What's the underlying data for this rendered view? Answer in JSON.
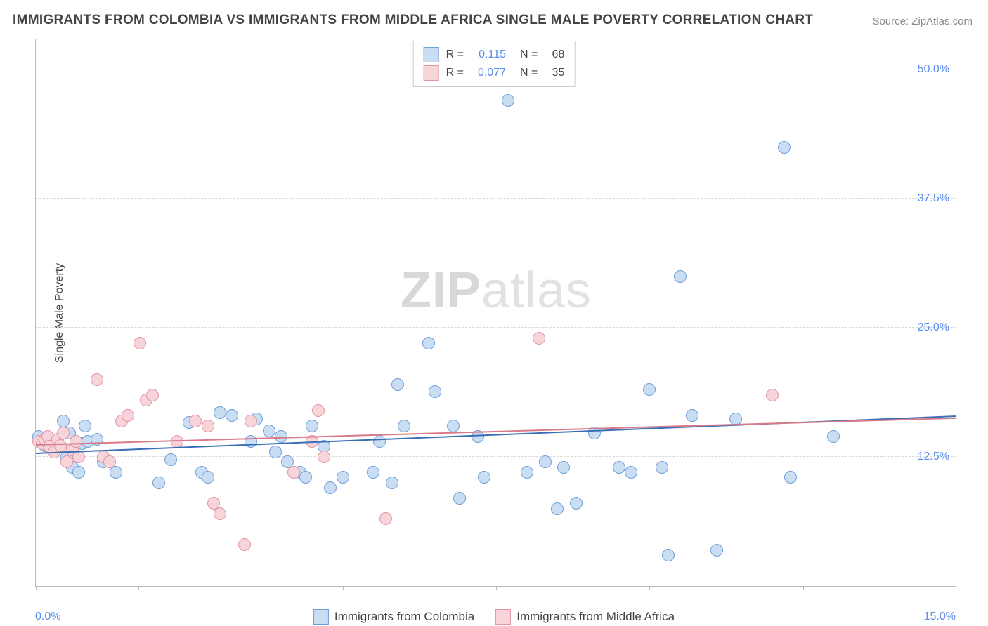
{
  "title": "IMMIGRANTS FROM COLOMBIA VS IMMIGRANTS FROM MIDDLE AFRICA SINGLE MALE POVERTY CORRELATION CHART",
  "source": "Source: ZipAtlas.com",
  "ylabel": "Single Male Poverty",
  "watermark_bold": "ZIP",
  "watermark_rest": "atlas",
  "chart": {
    "type": "scatter",
    "xlim": [
      0,
      15
    ],
    "ylim": [
      0,
      53
    ],
    "x_end_label": "15.0%",
    "x_start_label": "0.0%",
    "yticks": [
      {
        "v": 12.5,
        "label": "12.5%"
      },
      {
        "v": 25.0,
        "label": "25.0%"
      },
      {
        "v": 37.5,
        "label": "37.5%"
      },
      {
        "v": 50.0,
        "label": "50.0%"
      }
    ],
    "xticks": [
      0,
      1.67,
      5,
      7.5,
      10,
      12.5
    ],
    "series": [
      {
        "name": "Immigrants from Colombia",
        "fill": "#c9ddf3",
        "stroke": "#6f9fd8",
        "line_color": "#3a6fb7",
        "r": 0.115,
        "n": 68,
        "marker_radius": 8,
        "trend": {
          "y0": 12.8,
          "y1": 16.4
        },
        "data": [
          [
            0.05,
            14.5
          ],
          [
            0.1,
            14.0
          ],
          [
            0.12,
            13.8
          ],
          [
            0.15,
            13.6
          ],
          [
            0.18,
            14.2
          ],
          [
            0.2,
            13.5
          ],
          [
            0.22,
            14.1
          ],
          [
            0.25,
            13.9
          ],
          [
            0.45,
            16.0
          ],
          [
            0.5,
            12.5
          ],
          [
            0.55,
            14.8
          ],
          [
            0.6,
            11.5
          ],
          [
            0.7,
            11.0
          ],
          [
            0.75,
            13.8
          ],
          [
            0.8,
            15.5
          ],
          [
            0.85,
            14.0
          ],
          [
            1.0,
            14.2
          ],
          [
            1.1,
            12.0
          ],
          [
            1.3,
            11.0
          ],
          [
            2.0,
            10.0
          ],
          [
            2.2,
            12.2
          ],
          [
            2.5,
            15.8
          ],
          [
            2.7,
            11.0
          ],
          [
            2.8,
            10.5
          ],
          [
            3.0,
            16.8
          ],
          [
            3.2,
            16.5
          ],
          [
            3.5,
            14.0
          ],
          [
            3.6,
            16.2
          ],
          [
            3.8,
            15.0
          ],
          [
            3.9,
            13.0
          ],
          [
            4.0,
            14.5
          ],
          [
            4.1,
            12.0
          ],
          [
            4.3,
            11.0
          ],
          [
            4.4,
            10.5
          ],
          [
            4.5,
            15.5
          ],
          [
            4.7,
            13.5
          ],
          [
            4.8,
            9.5
          ],
          [
            5.0,
            10.5
          ],
          [
            5.5,
            11.0
          ],
          [
            5.6,
            14.0
          ],
          [
            5.8,
            10.0
          ],
          [
            5.9,
            19.5
          ],
          [
            6.0,
            15.5
          ],
          [
            6.4,
            23.5
          ],
          [
            6.5,
            18.8
          ],
          [
            6.8,
            15.5
          ],
          [
            6.9,
            8.5
          ],
          [
            7.2,
            14.5
          ],
          [
            7.3,
            10.5
          ],
          [
            7.7,
            47.0
          ],
          [
            8.0,
            11.0
          ],
          [
            8.3,
            12.0
          ],
          [
            8.5,
            7.5
          ],
          [
            8.6,
            11.5
          ],
          [
            8.8,
            8.0
          ],
          [
            9.1,
            14.8
          ],
          [
            9.5,
            11.5
          ],
          [
            9.7,
            11.0
          ],
          [
            10.0,
            19.0
          ],
          [
            10.2,
            11.5
          ],
          [
            10.3,
            3.0
          ],
          [
            10.5,
            30.0
          ],
          [
            10.7,
            16.5
          ],
          [
            11.1,
            3.5
          ],
          [
            11.4,
            16.2
          ],
          [
            12.2,
            42.5
          ],
          [
            12.3,
            10.5
          ],
          [
            13.0,
            14.5
          ]
        ]
      },
      {
        "name": "Immigrants from Middle Africa",
        "fill": "#f7d4da",
        "stroke": "#e394a2",
        "line_color": "#d77b8a",
        "r": 0.077,
        "n": 35,
        "marker_radius": 8,
        "trend": {
          "y0": 13.6,
          "y1": 16.2
        },
        "data": [
          [
            0.05,
            14.0
          ],
          [
            0.1,
            13.8
          ],
          [
            0.15,
            14.2
          ],
          [
            0.2,
            14.5
          ],
          [
            0.22,
            13.5
          ],
          [
            0.3,
            13.0
          ],
          [
            0.35,
            14.2
          ],
          [
            0.4,
            13.6
          ],
          [
            0.45,
            14.8
          ],
          [
            0.5,
            12.0
          ],
          [
            0.6,
            13.2
          ],
          [
            0.65,
            14.0
          ],
          [
            0.7,
            12.5
          ],
          [
            1.0,
            20.0
          ],
          [
            1.1,
            12.5
          ],
          [
            1.2,
            12.0
          ],
          [
            1.4,
            16.0
          ],
          [
            1.5,
            16.5
          ],
          [
            1.7,
            23.5
          ],
          [
            1.8,
            18.0
          ],
          [
            1.9,
            18.5
          ],
          [
            2.3,
            14.0
          ],
          [
            2.6,
            16.0
          ],
          [
            2.8,
            15.5
          ],
          [
            2.9,
            8.0
          ],
          [
            3.0,
            7.0
          ],
          [
            3.4,
            4.0
          ],
          [
            3.5,
            16.0
          ],
          [
            4.2,
            11.0
          ],
          [
            4.5,
            14.0
          ],
          [
            4.6,
            17.0
          ],
          [
            4.7,
            12.5
          ],
          [
            5.7,
            6.5
          ],
          [
            8.2,
            24.0
          ],
          [
            12.0,
            18.5
          ]
        ]
      }
    ]
  },
  "colors": {
    "title": "#444444",
    "source": "#888888",
    "axis_value": "#5b8def",
    "grid": "#d8d8d8",
    "border": "#bbbbbb"
  }
}
